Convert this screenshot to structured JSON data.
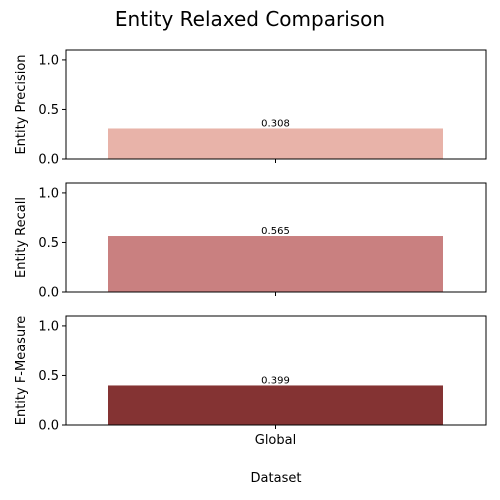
{
  "figure": {
    "title": "Entity Relaxed Comparison"
  },
  "chart_data": [
    {
      "type": "bar",
      "categories": [
        "Global"
      ],
      "series": [
        {
          "values": [
            0.308
          ]
        }
      ],
      "data_labels": [
        "0.308"
      ],
      "ylabel": "Entity Precision",
      "xlabel": "",
      "ylim": [
        0,
        1.1
      ],
      "yticks": [
        "0.0",
        "0.5",
        "1.0"
      ],
      "show_xticklabels": false,
      "grid": false,
      "bar_color": "#e8b3a9"
    },
    {
      "type": "bar",
      "categories": [
        "Global"
      ],
      "series": [
        {
          "values": [
            0.565
          ]
        }
      ],
      "data_labels": [
        "0.565"
      ],
      "ylabel": "Entity Recall",
      "xlabel": "",
      "ylim": [
        0,
        1.1
      ],
      "yticks": [
        "0.0",
        "0.5",
        "1.0"
      ],
      "show_xticklabels": false,
      "grid": false,
      "bar_color": "#c98080"
    },
    {
      "type": "bar",
      "categories": [
        "Global"
      ],
      "series": [
        {
          "values": [
            0.399
          ]
        }
      ],
      "data_labels": [
        "0.399"
      ],
      "ylabel": "Entity F-Measure",
      "xlabel": "Dataset",
      "ylim": [
        0,
        1.1
      ],
      "yticks": [
        "0.0",
        "0.5",
        "1.0"
      ],
      "show_xticklabels": true,
      "grid": false,
      "bar_color": "#843333"
    }
  ]
}
